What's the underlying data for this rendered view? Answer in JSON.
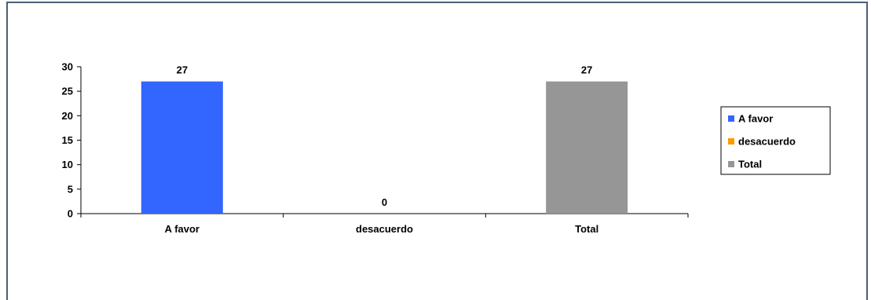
{
  "chart_data": {
    "type": "bar",
    "categories": [
      "A favor",
      "desacuerdo",
      "Total"
    ],
    "values": [
      27,
      0,
      27
    ],
    "ylim": [
      0,
      30
    ],
    "yticks": [
      0,
      5,
      10,
      15,
      20,
      25,
      30
    ],
    "data_labels": [
      "27",
      "0",
      "27"
    ],
    "title": "",
    "xlabel": "",
    "ylabel": "",
    "grid": false,
    "legend_position": "right",
    "legend": [
      "A favor",
      "desacuerdo",
      "Total"
    ],
    "colors": [
      "#3366ff",
      "#ff9900",
      "#969696"
    ]
  }
}
